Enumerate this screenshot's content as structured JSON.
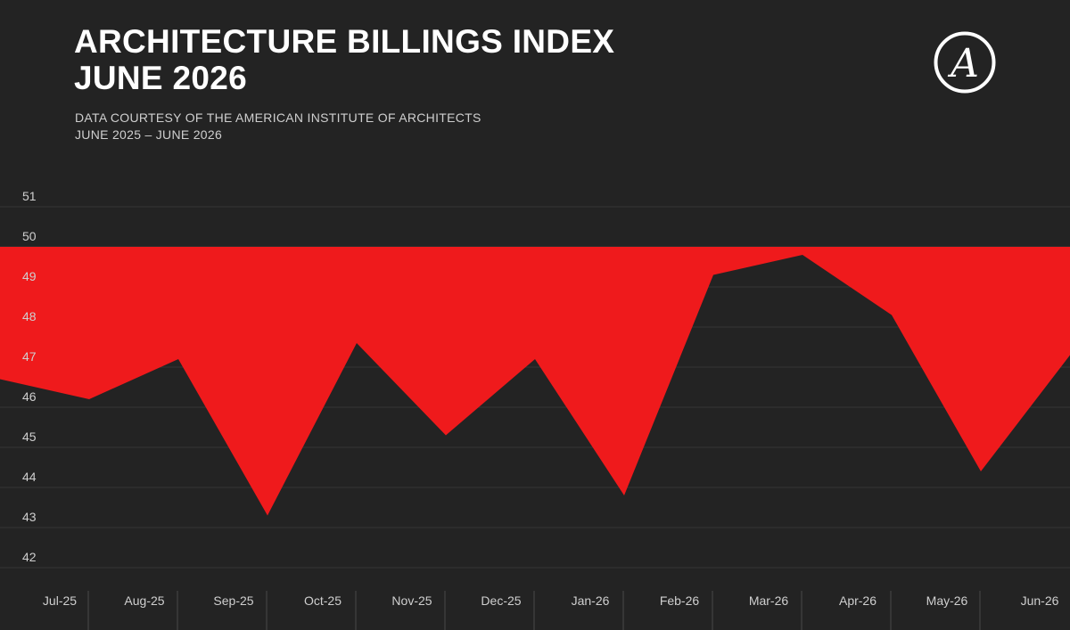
{
  "header": {
    "title_line1": "ARCHITECTURE BILLINGS INDEX",
    "title_line2": "JUNE 2026",
    "subtitle_line1": "DATA COURTESY OF THE AMERICAN INSTITUTE OF ARCHITECTS",
    "subtitle_line2": "JUNE 2025 – JUNE 2026"
  },
  "logo": {
    "icon": "letter-a-circle-logo",
    "text": "A"
  },
  "colors": {
    "background": "#232323",
    "fill": "#ef1a1c",
    "text": "#ffffff",
    "muted": "#cfcfcf",
    "grid": "#353535"
  },
  "chart_data": {
    "type": "area",
    "baseline": 50,
    "categories": [
      "",
      "Jul-25",
      "Aug-25",
      "Sep-25",
      "Oct-25",
      "Nov-25",
      "Dec-25",
      "Jan-26",
      "Feb-26",
      "Mar-26",
      "Apr-26",
      "May-26",
      "Jun-26"
    ],
    "x_tick_labels": [
      "Jul-25",
      "Aug-25",
      "Sep-25",
      "Oct-25",
      "Nov-25",
      "Dec-25",
      "Jan-26",
      "Feb-26",
      "Mar-26",
      "Apr-26",
      "May-26",
      "Jun-26"
    ],
    "values": [
      46.7,
      46.2,
      47.2,
      43.3,
      47.6,
      45.3,
      47.2,
      43.8,
      49.3,
      49.8,
      48.3,
      44.4,
      47.3
    ],
    "ylim": [
      41.8,
      51.2
    ],
    "yticks": [
      42,
      43,
      44,
      45,
      46,
      47,
      48,
      49,
      50,
      51
    ],
    "grid": true
  }
}
